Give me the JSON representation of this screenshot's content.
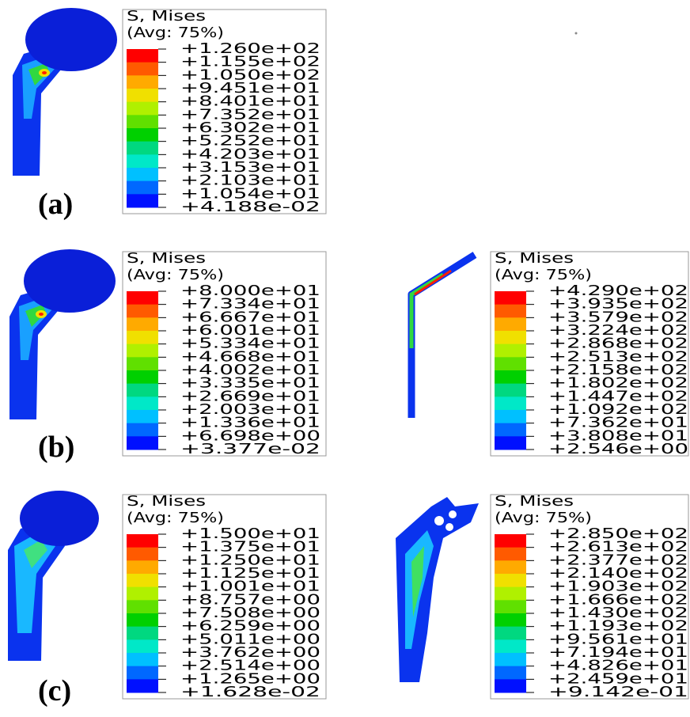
{
  "panels": [
    {
      "label": "(a)",
      "legends": [
        {
          "title": "S, Mises",
          "subtitle": "(Avg: 75%)",
          "values": [
            "+1.260e+02",
            "+1.155e+02",
            "+1.050e+02",
            "+9.451e+01",
            "+8.401e+01",
            "+7.352e+01",
            "+6.302e+01",
            "+5.252e+01",
            "+4.203e+01",
            "+3.153e+01",
            "+2.103e+01",
            "+1.054e+01",
            "+4.188e-02"
          ]
        }
      ]
    },
    {
      "label": "(b)",
      "legends": [
        {
          "title": "S, Mises",
          "subtitle": "(Avg: 75%)",
          "values": [
            "+8.000e+01",
            "+7.334e+01",
            "+6.667e+01",
            "+6.001e+01",
            "+5.334e+01",
            "+4.668e+01",
            "+4.002e+01",
            "+3.335e+01",
            "+2.669e+01",
            "+2.003e+01",
            "+1.336e+01",
            "+6.698e+00",
            "+3.377e-02"
          ]
        },
        {
          "title": "S, Mises",
          "subtitle": "(Avg: 75%)",
          "values": [
            "+4.290e+02",
            "+3.935e+02",
            "+3.579e+02",
            "+3.224e+02",
            "+2.868e+02",
            "+2.513e+02",
            "+2.158e+02",
            "+1.802e+02",
            "+1.447e+02",
            "+1.092e+02",
            "+7.362e+01",
            "+3.808e+01",
            "+2.546e+00"
          ]
        }
      ]
    },
    {
      "label": "(c)",
      "legends": [
        {
          "title": "S, Mises",
          "subtitle": "(Avg: 75%)",
          "values": [
            "+1.500e+01",
            "+1.375e+01",
            "+1.250e+01",
            "+1.125e+01",
            "+1.001e+01",
            "+8.757e+00",
            "+7.508e+00",
            "+6.259e+00",
            "+5.011e+00",
            "+3.762e+00",
            "+2.514e+00",
            "+1.265e+00",
            "+1.628e-02"
          ]
        },
        {
          "title": "S, Mises",
          "subtitle": "(Avg: 75%)",
          "values": [
            "+2.850e+02",
            "+2.613e+02",
            "+2.377e+02",
            "+2.140e+02",
            "+1.903e+02",
            "+1.666e+02",
            "+1.430e+02",
            "+1.193e+02",
            "+9.561e+01",
            "+7.194e+01",
            "+4.826e+01",
            "+2.459e+01",
            "+9.142e-01"
          ]
        }
      ]
    }
  ]
}
